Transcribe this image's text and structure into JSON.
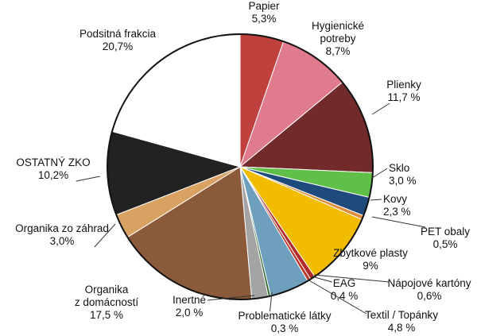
{
  "chart_data": {
    "type": "pie",
    "title": "",
    "slices": [
      {
        "name": "Papier",
        "label_lines": [
          "Papier",
          "5,3%"
        ],
        "value": 5.3,
        "color": "#c0403d"
      },
      {
        "name": "Hygienické potreby",
        "label_lines": [
          "Hygienické",
          "potreby",
          "8,7%"
        ],
        "value": 8.7,
        "color": "#e07a8d"
      },
      {
        "name": "Plienky",
        "label_lines": [
          "Plienky",
          "11,7 %"
        ],
        "value": 11.7,
        "color": "#722a2a"
      },
      {
        "name": "Sklo",
        "label_lines": [
          "Sklo",
          "3,0 %"
        ],
        "value": 3.0,
        "color": "#5fbf49"
      },
      {
        "name": "Kovy",
        "label_lines": [
          "Kovy",
          "2,3 %"
        ],
        "value": 2.3,
        "color": "#1f4a7c"
      },
      {
        "name": "PET obaly",
        "label_lines": [
          "PET obaly",
          "0,5%"
        ],
        "value": 0.5,
        "color": "#e08a3a"
      },
      {
        "name": "Zbytkové plasty",
        "label_lines": [
          "Zbytkové plasty",
          "9%"
        ],
        "value": 9.0,
        "color": "#f2bc00"
      },
      {
        "name": "Nápojové kartóny",
        "label_lines": [
          "Nápojové kartóny",
          "0,6%"
        ],
        "value": 0.6,
        "color": "#b02a2a"
      },
      {
        "name": "EAG",
        "label_lines": [
          "EAG",
          "0,4 %"
        ],
        "value": 0.4,
        "color": "#bb3322"
      },
      {
        "name": "Textil / Topánky",
        "label_lines": [
          "Textil / Topánky",
          "4,8 %"
        ],
        "value": 4.8,
        "color": "#6ea0bd"
      },
      {
        "name": "Problematické látky",
        "label_lines": [
          "Problematické látky",
          "0,3 %"
        ],
        "value": 0.3,
        "color": "#2c6b2c"
      },
      {
        "name": "Inertné",
        "label_lines": [
          "Inertné",
          "2,0 %"
        ],
        "value": 2.0,
        "color": "#a4a4a4"
      },
      {
        "name": "Organika z domácností",
        "label_lines": [
          "Organika",
          "z domácností",
          "17,5 %"
        ],
        "value": 17.5,
        "color": "#8b5a3b"
      },
      {
        "name": "Organika zo záhrad",
        "label_lines": [
          "Organika zo záhrad",
          "3,0%"
        ],
        "value": 3.0,
        "color": "#d9a262"
      },
      {
        "name": "OSTATNÝ ZKO",
        "label_lines": [
          "OSTATNÝ ZKO",
          "10,2%"
        ],
        "value": 10.2,
        "color": "#222222"
      },
      {
        "name": "Podsitná frakcia",
        "label_lines": [
          "Podsitná frakcia",
          "20,7%"
        ],
        "value": 20.7,
        "color": "#ffffff"
      }
    ],
    "start": "12 o'clock",
    "direction": "clockwise",
    "legend": "none (labels placed around the pie with leader lines)"
  }
}
